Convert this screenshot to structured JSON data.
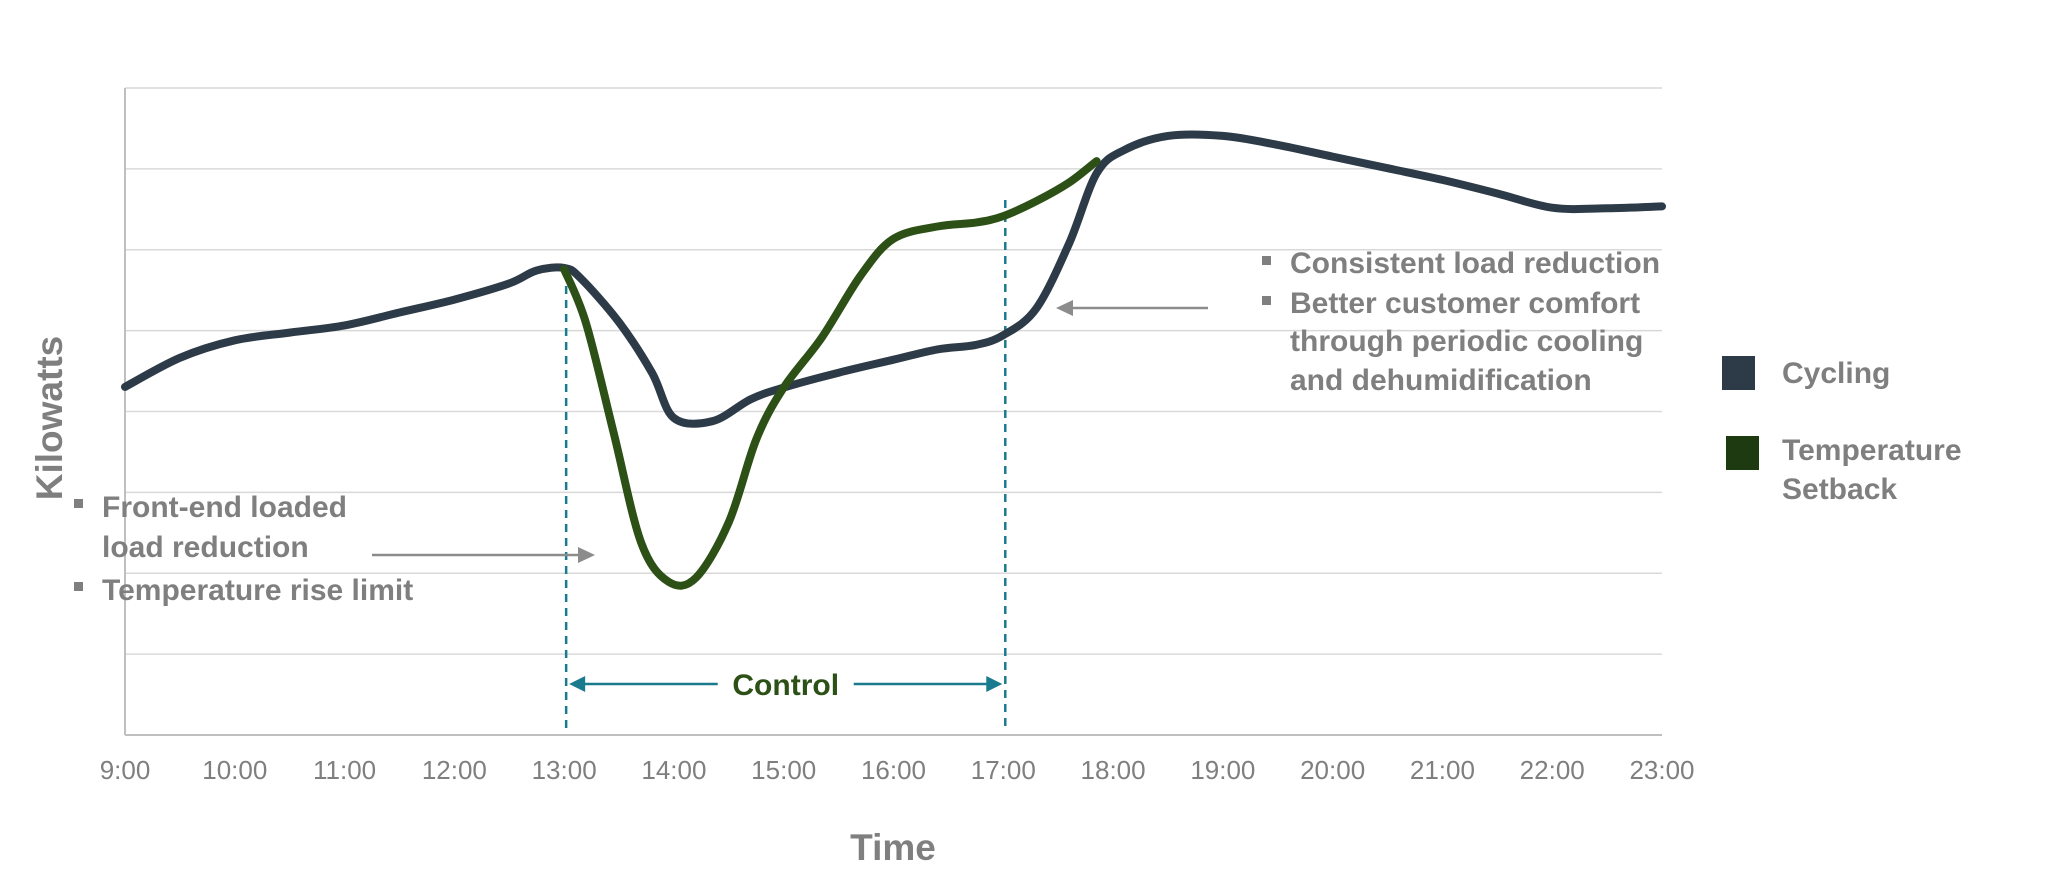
{
  "chart_data": {
    "type": "line",
    "title": "",
    "xlabel": "Time",
    "ylabel": "Kilowatts",
    "x_ticks": [
      "9:00",
      "10:00",
      "11:00",
      "12:00",
      "13:00",
      "14:00",
      "15:00",
      "16:00",
      "17:00",
      "18:00",
      "19:00",
      "20:00",
      "21:00",
      "22:00",
      "23:00"
    ],
    "grid": true,
    "legend_position": "right",
    "series": [
      {
        "name": "Cycling",
        "color": "#2d3b48",
        "points": [
          [
            9.0,
            0.538
          ],
          [
            9.5,
            0.583
          ],
          [
            10.0,
            0.61
          ],
          [
            10.5,
            0.622
          ],
          [
            11.0,
            0.633
          ],
          [
            11.5,
            0.653
          ],
          [
            12.0,
            0.673
          ],
          [
            12.5,
            0.698
          ],
          [
            12.75,
            0.718
          ],
          [
            13.0,
            0.722
          ],
          [
            13.15,
            0.706
          ],
          [
            13.5,
            0.638
          ],
          [
            13.8,
            0.56
          ],
          [
            14.0,
            0.49
          ],
          [
            14.35,
            0.485
          ],
          [
            14.7,
            0.519
          ],
          [
            15.0,
            0.537
          ],
          [
            15.5,
            0.56
          ],
          [
            16.0,
            0.58
          ],
          [
            16.4,
            0.596
          ],
          [
            16.75,
            0.603
          ],
          [
            17.0,
            0.618
          ],
          [
            17.3,
            0.659
          ],
          [
            17.6,
            0.76
          ],
          [
            17.85,
            0.868
          ],
          [
            18.1,
            0.904
          ],
          [
            18.5,
            0.926
          ],
          [
            19.0,
            0.926
          ],
          [
            19.5,
            0.912
          ],
          [
            20.0,
            0.894
          ],
          [
            20.5,
            0.876
          ],
          [
            21.0,
            0.858
          ],
          [
            21.5,
            0.837
          ],
          [
            22.0,
            0.815
          ],
          [
            22.5,
            0.814
          ],
          [
            23.0,
            0.817
          ]
        ]
      },
      {
        "name": "Temperature Setback",
        "color": "#2d5016",
        "points": [
          [
            13.0,
            0.72
          ],
          [
            13.2,
            0.636
          ],
          [
            13.45,
            0.468
          ],
          [
            13.7,
            0.298
          ],
          [
            13.95,
            0.237
          ],
          [
            14.2,
            0.243
          ],
          [
            14.5,
            0.329
          ],
          [
            14.75,
            0.457
          ],
          [
            15.0,
            0.537
          ],
          [
            15.35,
            0.615
          ],
          [
            15.7,
            0.71
          ],
          [
            16.0,
            0.767
          ],
          [
            16.4,
            0.786
          ],
          [
            16.75,
            0.792
          ],
          [
            17.0,
            0.802
          ],
          [
            17.3,
            0.825
          ],
          [
            17.6,
            0.854
          ],
          [
            17.85,
            0.887
          ]
        ]
      }
    ],
    "control_period": {
      "start": 13.0,
      "end": 17.0,
      "label": "Control"
    },
    "annotations": {
      "left": [
        "Front-end loaded load reduction",
        "Temperature rise limit"
      ],
      "right": [
        "Consistent load reduction",
        "Better customer comfort through periodic cooling and dehumidification"
      ]
    }
  },
  "text": {
    "anno_left_1a": "Front-end loaded",
    "anno_left_1b": "load reduction",
    "anno_left_2": "Temperature rise limit",
    "anno_right_1": "Consistent load reduction",
    "anno_right_2a": "Better customer comfort",
    "anno_right_2b": "through periodic cooling",
    "anno_right_2c": "and dehumidification",
    "legend_1": "Cycling",
    "legend_2a": "Temperature",
    "legend_2b": "Setback",
    "control": "Control",
    "xlabel": "Time",
    "ylabel": "Kilowatts"
  },
  "colors": {
    "cycling": "#2d3b48",
    "setback": "#2d5016",
    "legend_setback": "#1e3a10",
    "control": "#1a7b8f",
    "gridline": "#d9d9d9",
    "arrow": "#8c8c8c",
    "label": "#7f7f7f"
  }
}
